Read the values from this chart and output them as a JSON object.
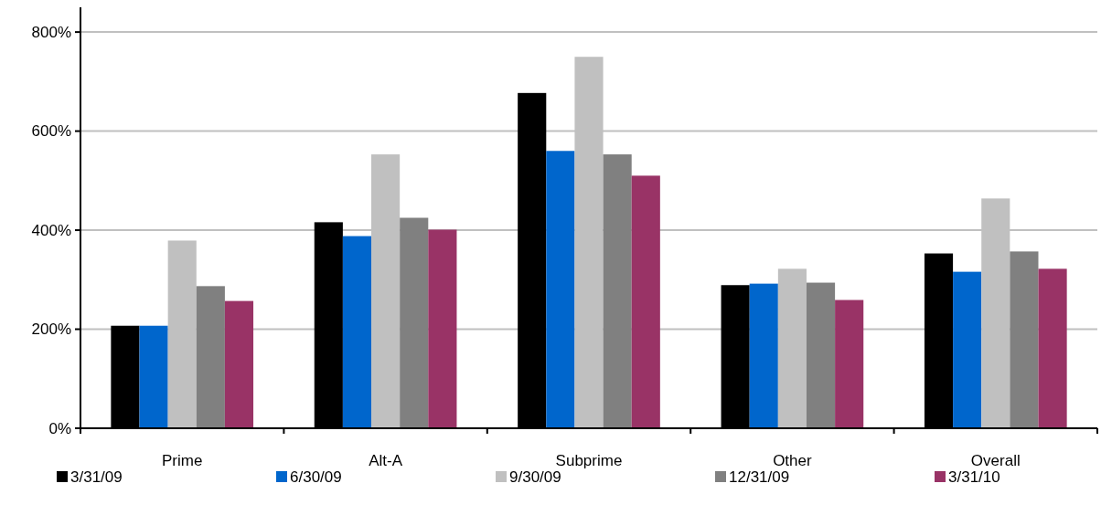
{
  "chart_data": {
    "type": "bar",
    "categories": [
      "Prime",
      "Alt-A",
      "Subprime",
      "Other",
      "Overall"
    ],
    "series": [
      {
        "name": "3/31/09",
        "color": "#000000",
        "values": [
          207,
          416,
          677,
          289,
          353
        ]
      },
      {
        "name": "6/30/09",
        "color": "#0066cc",
        "values": [
          207,
          388,
          560,
          292,
          316
        ]
      },
      {
        "name": "9/30/09",
        "color": "#c0c0c0",
        "values": [
          379,
          553,
          750,
          322,
          464
        ]
      },
      {
        "name": "12/31/09",
        "color": "#808080",
        "values": [
          287,
          425,
          553,
          294,
          357
        ]
      },
      {
        "name": "3/31/10",
        "color": "#993366",
        "values": [
          257,
          401,
          510,
          259,
          322
        ]
      }
    ],
    "ylim": [
      0,
      850
    ],
    "yticks": [
      {
        "value": 0,
        "label": "0%"
      },
      {
        "value": 200,
        "label": "200%"
      },
      {
        "value": 400,
        "label": "400%"
      },
      {
        "value": 600,
        "label": "600%"
      },
      {
        "value": 800,
        "label": "800%"
      }
    ],
    "grid": "y",
    "legend": "bottom"
  }
}
